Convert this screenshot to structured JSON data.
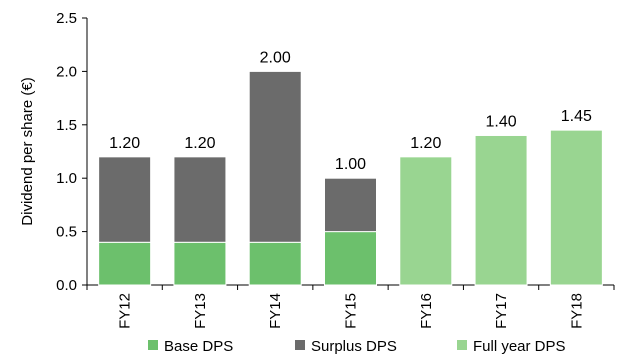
{
  "chart_data": {
    "type": "bar",
    "stacked": true,
    "categories": [
      "FY12",
      "FY13",
      "FY14",
      "FY15",
      "FY16",
      "FY17",
      "FY18"
    ],
    "series": [
      {
        "name": "Base DPS",
        "color": "#6cc06c",
        "values": [
          0.4,
          0.4,
          0.4,
          0.5,
          null,
          null,
          null
        ]
      },
      {
        "name": "Surplus DPS",
        "color": "#6b6b6b",
        "values": [
          0.8,
          0.8,
          1.6,
          0.5,
          null,
          null,
          null
        ]
      },
      {
        "name": "Full year DPS",
        "color": "#99d591",
        "values": [
          null,
          null,
          null,
          null,
          1.2,
          1.4,
          1.45
        ]
      }
    ],
    "totals_labels": [
      "1.20",
      "1.20",
      "2.00",
      "1.00",
      "1.20",
      "1.40",
      "1.45"
    ],
    "totals": [
      1.2,
      1.2,
      2.0,
      1.0,
      1.2,
      1.4,
      1.45
    ],
    "ylabel": "Dividend per share (€)",
    "xlabel": "",
    "title": "",
    "ylim": [
      0,
      2.5
    ],
    "yticks": [
      "0.0",
      "0.5",
      "1.0",
      "1.5",
      "2.0",
      "2.5"
    ],
    "ytick_values": [
      0,
      0.5,
      1.0,
      1.5,
      2.0,
      2.5
    ],
    "grid": false,
    "legend": "bottom"
  }
}
